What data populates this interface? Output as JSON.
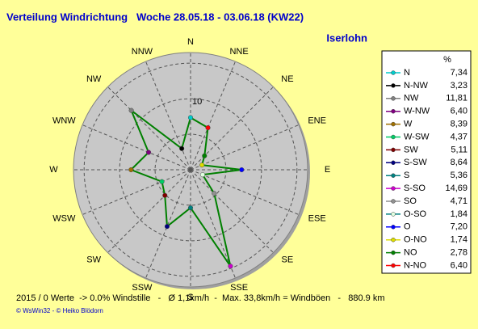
{
  "chart_data": {
    "type": "radar",
    "title": "Verteilung Windrichtung   Woche 28.05.18 - 03.06.18 (KW22)",
    "location": "Iserlohn",
    "categories": [
      "N",
      "NNE",
      "NE",
      "ENE",
      "E",
      "ESE",
      "SE",
      "SSE",
      "S",
      "SSW",
      "SW",
      "WSW",
      "W",
      "WNW",
      "NW",
      "NNW"
    ],
    "rlim": [
      0,
      16.5
    ],
    "rticks": [
      10
    ],
    "rgrid": [
      5,
      15
    ],
    "line_color": "#008000",
    "legend_header": "%",
    "series": [
      {
        "name": "N",
        "color": "#00cccc",
        "value": 7.34,
        "value_label": "7,34"
      },
      {
        "name": "N-NW",
        "color": "#000000",
        "value": 3.23,
        "value_label": "3,23"
      },
      {
        "name": "NW",
        "color": "#808080",
        "value": 11.81,
        "value_label": "11,81"
      },
      {
        "name": "W-NW",
        "color": "#800080",
        "value": 6.4,
        "value_label": "6,40"
      },
      {
        "name": "W",
        "color": "#a07000",
        "value": 8.39,
        "value_label": "8,39"
      },
      {
        "name": "W-SW",
        "color": "#00cc66",
        "value": 4.37,
        "value_label": "4,37"
      },
      {
        "name": "SW",
        "color": "#800000",
        "value": 5.11,
        "value_label": "5,11"
      },
      {
        "name": "S-SW",
        "color": "#000080",
        "value": 8.64,
        "value_label": "8,64"
      },
      {
        "name": "S",
        "color": "#008080",
        "value": 5.36,
        "value_label": "5,36"
      },
      {
        "name": "S-SO",
        "color": "#cc00cc",
        "value": 14.69,
        "value_label": "14,69"
      },
      {
        "name": "SO",
        "color": "#909090",
        "value": 4.71,
        "value_label": "4,71"
      },
      {
        "name": "O-SO",
        "color": "#e0ffe0",
        "value": 1.84,
        "value_label": "1,84"
      },
      {
        "name": "O",
        "color": "#0000ff",
        "value": 7.2,
        "value_label": "7,20"
      },
      {
        "name": "O-NO",
        "color": "#dddd00",
        "value": 1.74,
        "value_label": "1,74"
      },
      {
        "name": "NO",
        "color": "#008000",
        "value": 2.78,
        "value_label": "2,78"
      },
      {
        "name": "N-NO",
        "color": "#ff0000",
        "value": 6.4,
        "value_label": "6,40"
      }
    ],
    "footer": "2015 / 0 Werte  -> 0.0% Windstille   -   Ø 1,1km/h  -  Max. 33,8km/h = Windböen   -   880.9 km",
    "copyright": "© WsWin32  - © Heiko Blödorn"
  }
}
